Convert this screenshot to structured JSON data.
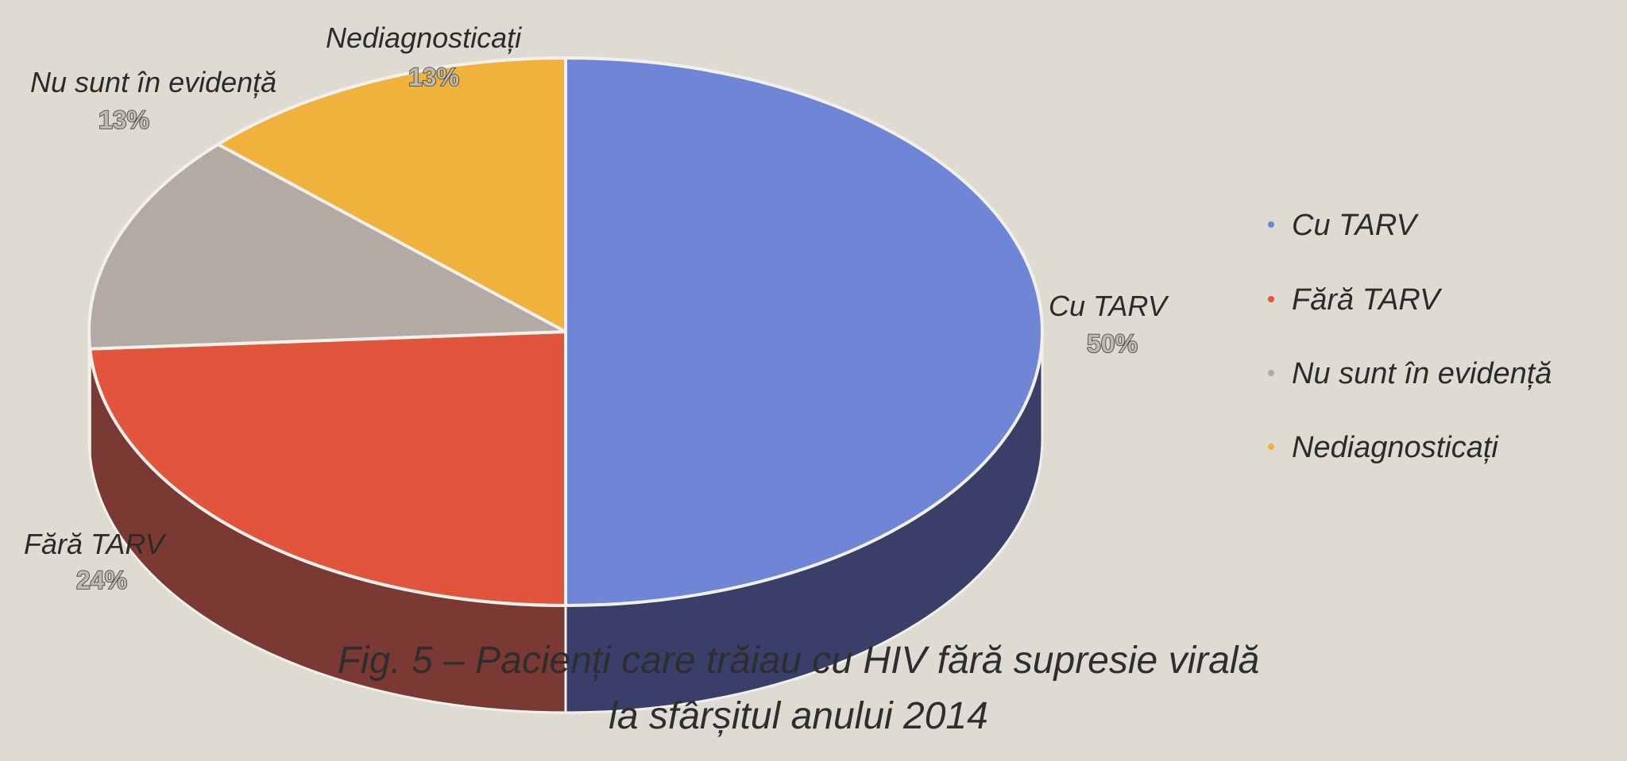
{
  "chart_data": {
    "type": "pie",
    "title": "Fig. 5 – Pacienți care trăiau cu HIV fără supresie virală la sfârșitul anului 2014",
    "title_lines": [
      "Fig. 5 – Pacienți care trăiau cu HIV fără supresie virală",
      "la sfârșitul anului 2014"
    ],
    "legend_position": "right",
    "slices": [
      {
        "label": "Cu TARV",
        "value": 50,
        "value_label": "50%",
        "color": "#6f86d6",
        "side_color": "#3a3f6a"
      },
      {
        "label": "Fără TARV",
        "value": 24,
        "value_label": "24%",
        "color": "#e0553c",
        "side_color": "#7a3a33"
      },
      {
        "label": "Nu sunt în evidență",
        "value": 13,
        "value_label": "13%",
        "color": "#b3aaa6",
        "side_color": "#6e6662"
      },
      {
        "label": "Nediagnosticați",
        "value": 13,
        "value_label": "13%",
        "color": "#f0b13d",
        "side_color": "#8a6a2c"
      }
    ]
  }
}
